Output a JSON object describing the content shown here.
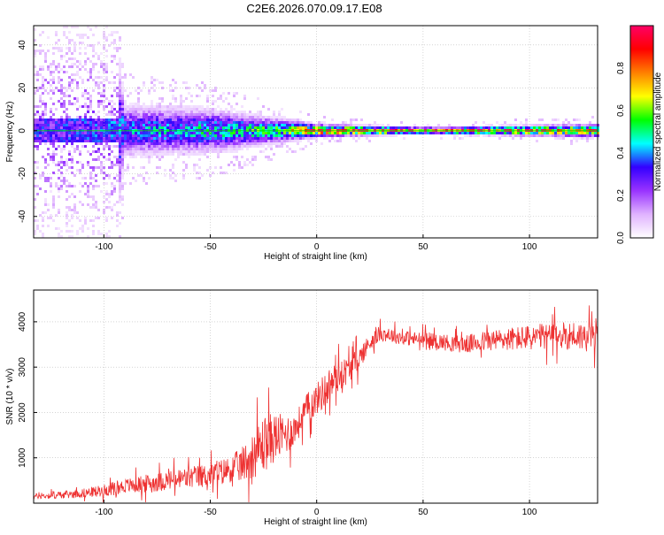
{
  "page": {
    "title": "C2E6.2026.070.09.17.E08"
  },
  "chart_data": [
    {
      "type": "heatmap",
      "title": "C2E6.2026.070.09.17.E08",
      "xlabel": "Height of straight line (km)",
      "ylabel": "Frequency (Hz)",
      "xlim": [
        -133,
        132
      ],
      "ylim": [
        -50,
        49
      ],
      "xticks": [
        -100,
        -50,
        0,
        50,
        100
      ],
      "yticks": [
        -40,
        -20,
        0,
        20,
        40
      ],
      "grid": true,
      "colorbar": {
        "label": "Normalized spectral amplitude",
        "range": [
          0.0,
          1.0
        ],
        "ticks": [
          0.0,
          0.2,
          0.4,
          0.6,
          0.8
        ],
        "colors": [
          "#ffffff",
          "#e0b3ff",
          "#9933ff",
          "#3300ff",
          "#00ffff",
          "#00ff00",
          "#ffff00",
          "#ff8000",
          "#ff0000",
          "#ff0066"
        ]
      },
      "description_values": {
        "center_frequency_hz": 0,
        "spread_hz_at_x": [
          {
            "x": -130,
            "spread": 50
          },
          {
            "x": -95,
            "spread": 50
          },
          {
            "x": -90,
            "spread": 12
          },
          {
            "x": -50,
            "spread": 10
          },
          {
            "x": -20,
            "spread": 6
          },
          {
            "x": 0,
            "spread": 3
          },
          {
            "x": 50,
            "spread": 1.5
          },
          {
            "x": 130,
            "spread": 3
          }
        ],
        "peak_amplitude_at_x": [
          {
            "x": -120,
            "amp": 0.35
          },
          {
            "x": -60,
            "amp": 0.45
          },
          {
            "x": -20,
            "amp": 0.55
          },
          {
            "x": 0,
            "amp": 0.9
          },
          {
            "x": 50,
            "amp": 0.95
          },
          {
            "x": 130,
            "amp": 0.8
          }
        ]
      }
    },
    {
      "type": "line",
      "title": "",
      "xlabel": "Height of straight line (km)",
      "ylabel": "SNR (10 * v/v)",
      "xlim": [
        -133,
        132
      ],
      "ylim": [
        0,
        4700
      ],
      "xticks": [
        -100,
        -50,
        0,
        50,
        100
      ],
      "yticks": [
        1000,
        2000,
        3000,
        4000
      ],
      "grid": true,
      "color": "#ee3333",
      "series": [
        {
          "name": "",
          "x": [
            -133,
            -120,
            -110,
            -100,
            -90,
            -80,
            -70,
            -60,
            -50,
            -40,
            -35,
            -30,
            -25,
            -20,
            -15,
            -10,
            -5,
            0,
            5,
            10,
            15,
            20,
            25,
            30,
            35,
            40,
            50,
            60,
            70,
            80,
            90,
            100,
            110,
            120,
            132
          ],
          "y": [
            150,
            180,
            220,
            280,
            380,
            430,
            500,
            560,
            620,
            760,
            850,
            1050,
            1300,
            1450,
            1500,
            1650,
            2050,
            2300,
            2550,
            2800,
            2950,
            3200,
            3550,
            3750,
            3700,
            3650,
            3600,
            3550,
            3500,
            3580,
            3620,
            3650,
            3680,
            3700,
            3650
          ],
          "noise": [
            60,
            80,
            100,
            130,
            160,
            200,
            220,
            250,
            260,
            300,
            400,
            500,
            650,
            550,
            450,
            350,
            350,
            350,
            400,
            350,
            300,
            250,
            200,
            170,
            160,
            160,
            170,
            180,
            200,
            230,
            260,
            280,
            300,
            320,
            330
          ]
        }
      ]
    }
  ]
}
